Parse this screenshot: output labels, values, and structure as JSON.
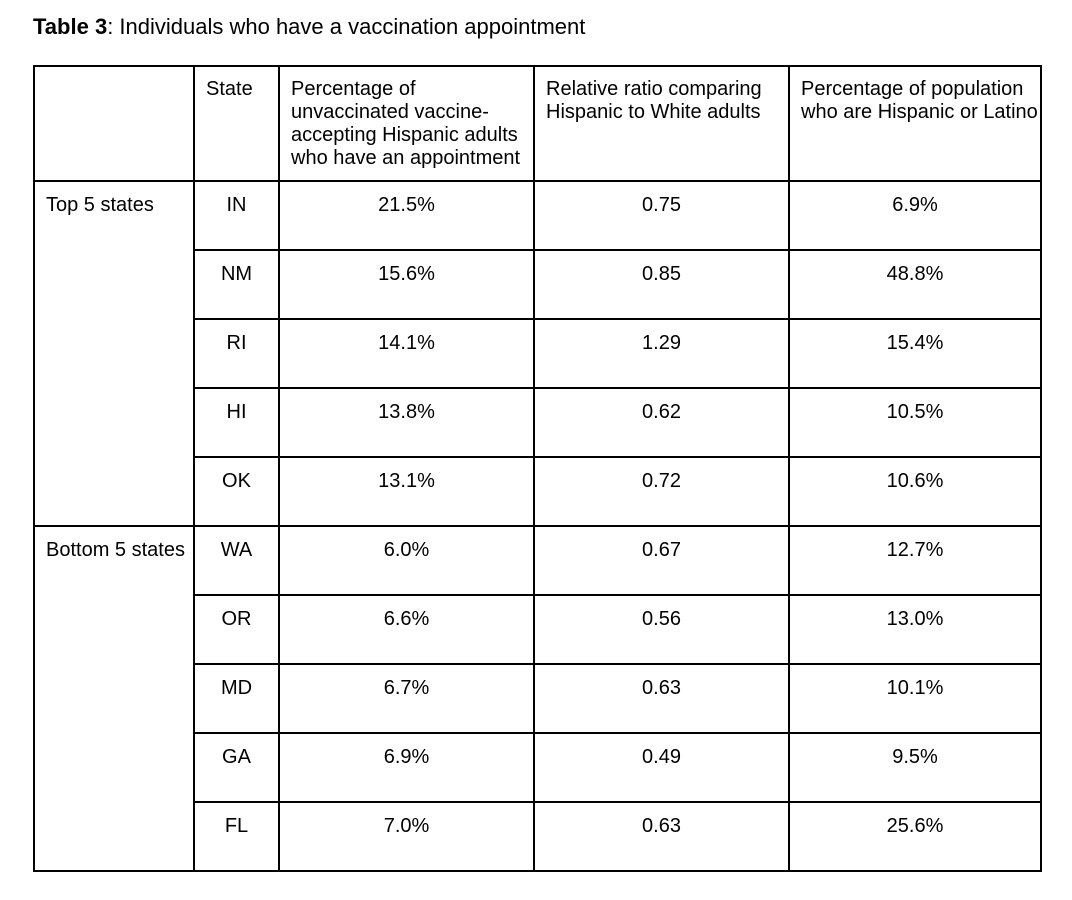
{
  "caption": {
    "bold": "Table 3",
    "rest": ": Individuals who have a vaccination appointment"
  },
  "table": {
    "columns": {
      "corner": "",
      "state": "State",
      "pct_appointment": "Percentage of\nunvaccinated vaccine-\naccepting Hispanic adults\nwho have an appointment",
      "ratio": "Relative ratio comparing\nHispanic to White adults",
      "pct_population": "Percentage of population\nwho are Hispanic or Latino"
    },
    "groups": [
      {
        "label": "Top 5 states",
        "rows": [
          {
            "state": "IN",
            "pct_appointment": "21.5%",
            "ratio": "0.75",
            "pct_population": "6.9%"
          },
          {
            "state": "NM",
            "pct_appointment": "15.6%",
            "ratio": "0.85",
            "pct_population": "48.8%"
          },
          {
            "state": "RI",
            "pct_appointment": "14.1%",
            "ratio": "1.29",
            "pct_population": "15.4%"
          },
          {
            "state": "HI",
            "pct_appointment": "13.8%",
            "ratio": "0.62",
            "pct_population": "10.5%"
          },
          {
            "state": "OK",
            "pct_appointment": "13.1%",
            "ratio": "0.72",
            "pct_population": "10.6%"
          }
        ]
      },
      {
        "label": "Bottom 5 states",
        "rows": [
          {
            "state": "WA",
            "pct_appointment": "6.0%",
            "ratio": "0.67",
            "pct_population": "12.7%"
          },
          {
            "state": "OR",
            "pct_appointment": "6.6%",
            "ratio": "0.56",
            "pct_population": "13.0%"
          },
          {
            "state": "MD",
            "pct_appointment": "6.7%",
            "ratio": "0.63",
            "pct_population": "10.1%"
          },
          {
            "state": "GA",
            "pct_appointment": "6.9%",
            "ratio": "0.49",
            "pct_population": "9.5%"
          },
          {
            "state": "FL",
            "pct_appointment": "7.0%",
            "ratio": "0.63",
            "pct_population": "25.6%"
          }
        ]
      }
    ]
  },
  "colors": {
    "background": "#ffffff",
    "text": "#000000",
    "border": "#000000"
  }
}
